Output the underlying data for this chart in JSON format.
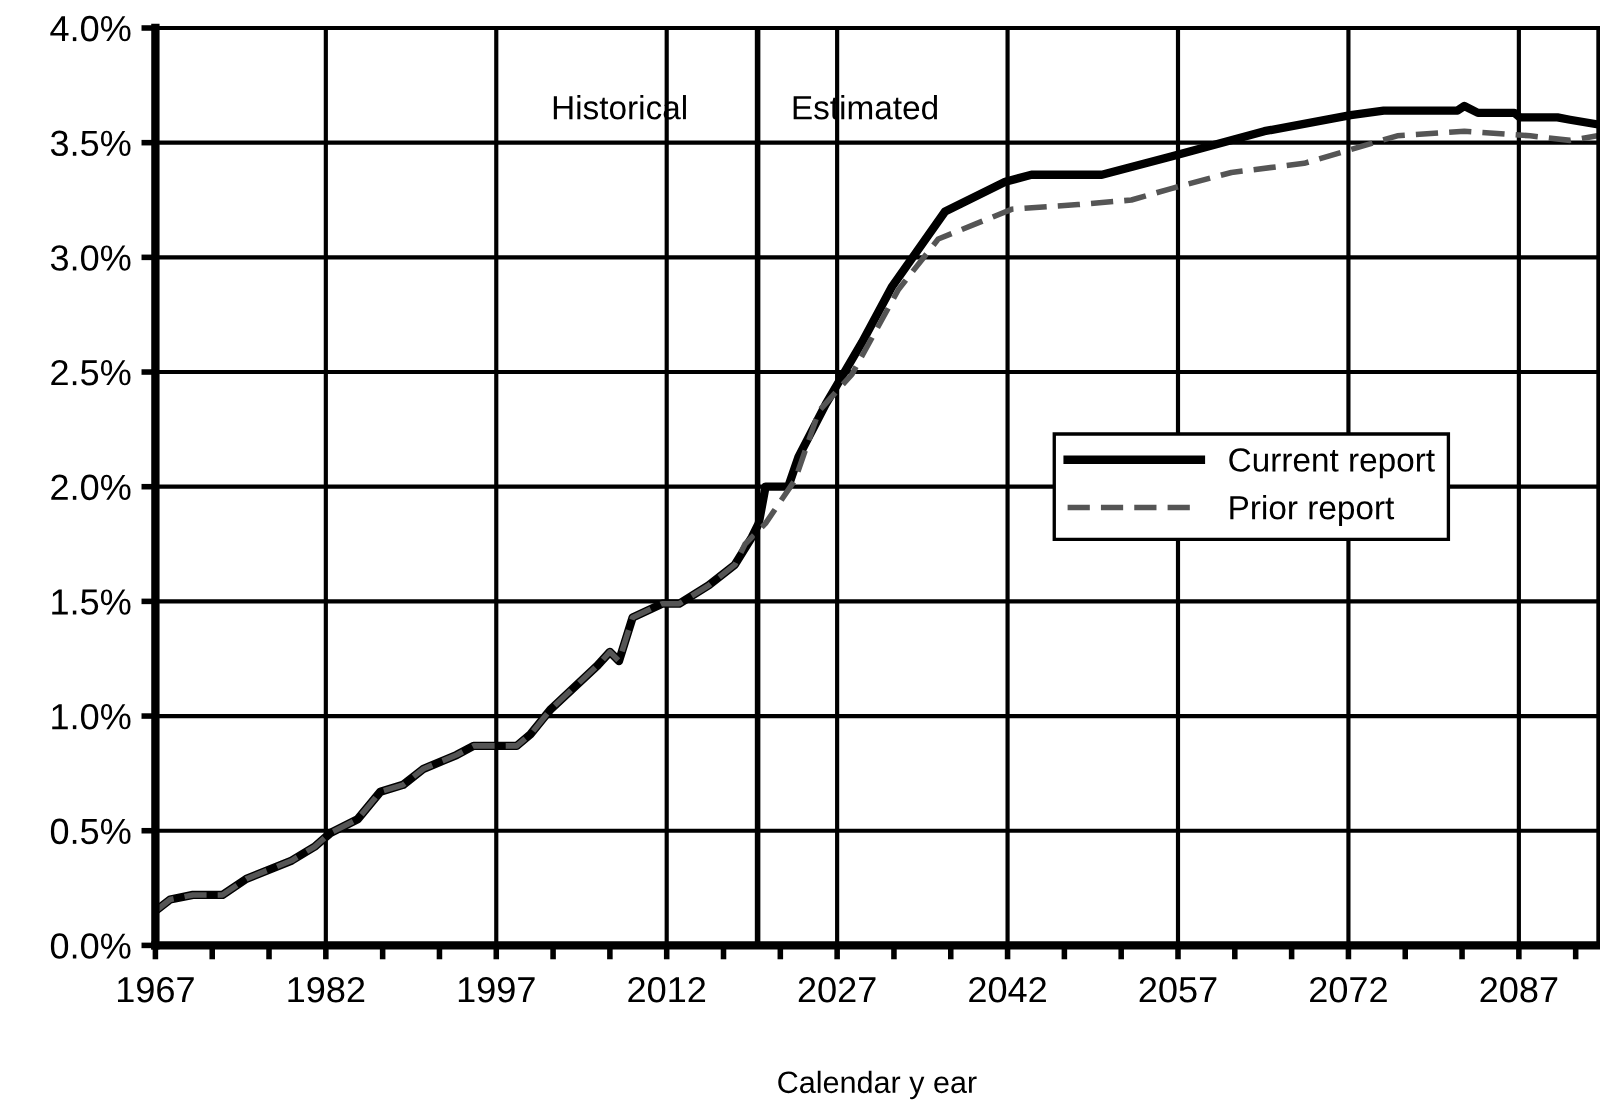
{
  "chart_data": {
    "type": "line",
    "xlabel": "Calendar y ear",
    "xlim": [
      1967,
      2094
    ],
    "xticks": [
      1967,
      {
        "value": 1972,
        "label": null
      },
      {
        "value": 1977,
        "label": null
      },
      1982,
      {
        "value": 1987,
        "label": null
      },
      {
        "value": 1992,
        "label": null
      },
      1997,
      {
        "value": 2002,
        "label": null
      },
      {
        "value": 2007,
        "label": null
      },
      2012,
      {
        "value": 2017,
        "label": null
      },
      {
        "value": 2022,
        "label": null
      },
      2027,
      {
        "value": 2032,
        "label": null
      },
      {
        "value": 2037,
        "label": null
      },
      2042,
      {
        "value": 2047,
        "label": null
      },
      {
        "value": 2052,
        "label": null
      },
      2057,
      {
        "value": 2062,
        "label": null
      },
      {
        "value": 2067,
        "label": null
      },
      2072,
      {
        "value": 2077,
        "label": null
      },
      {
        "value": 2082,
        "label": null
      },
      2087,
      {
        "value": 2092,
        "label": null
      }
    ],
    "ylim": [
      0,
      4
    ],
    "yticks": [
      {
        "value": 0,
        "label": "0.0%"
      },
      {
        "value": 0.5,
        "label": "0.5%"
      },
      {
        "value": 1,
        "label": "1.0%"
      },
      {
        "value": 1.5,
        "label": "1.5%"
      },
      {
        "value": 2,
        "label": "2.0%"
      },
      {
        "value": 2.5,
        "label": "2.5%"
      },
      {
        "value": 3,
        "label": "3.0%"
      },
      {
        "value": 3.5,
        "label": "3.5%"
      },
      {
        "value": 4,
        "label": "4.0%"
      }
    ],
    "grid": true,
    "legend": "center right",
    "ref_lines": [
      {
        "axis": "x",
        "value": 2020,
        "color": "#000000"
      }
    ],
    "annotations": [
      "Historical",
      "Estimated"
    ],
    "series": [
      {
        "name": "Current report",
        "color": "#000000",
        "line_style": "solid",
        "x": [
          1967,
          1968.3,
          1970.3,
          1972.9,
          1975,
          1979,
          1981,
          1982.4,
          1984.8,
          1986.8,
          1988.8,
          1990.6,
          1993.5,
          1995,
          1998.8,
          2000,
          2001.8,
          2005.9,
          2007,
          2007.8,
          2009,
          2011.6,
          2013.1,
          2015.7,
          2018,
          2019.5,
          2020.1,
          2020.7,
          2022.7,
          2023.6,
          2026,
          2029.2,
          2031.8,
          2036.5,
          2041.8,
          2044.1,
          2050.3,
          2056.4,
          2064.6,
          2072.2,
          2075.1,
          2081.6,
          2082.2,
          2083.4,
          2086.6,
          2087.1,
          2090.4,
          2091.5,
          2093.9
        ],
        "values": [
          0.15,
          0.2,
          0.22,
          0.22,
          0.29,
          0.37,
          0.43,
          0.49,
          0.55,
          0.67,
          0.7,
          0.77,
          0.83,
          0.87,
          0.87,
          0.92,
          1.03,
          1.22,
          1.28,
          1.24,
          1.43,
          1.49,
          1.49,
          1.57,
          1.66,
          1.78,
          1.84,
          2.0,
          2.0,
          2.13,
          2.36,
          2.63,
          2.87,
          3.2,
          3.33,
          3.36,
          3.36,
          3.44,
          3.55,
          3.62,
          3.64,
          3.64,
          3.66,
          3.63,
          3.63,
          3.61,
          3.61,
          3.6,
          3.58
        ]
      },
      {
        "name": "Prior report",
        "color": "#555555",
        "line_style": "dashed",
        "x": [
          1967,
          1968.3,
          1970.3,
          1972.9,
          1975,
          1979,
          1981,
          1982.4,
          1984.8,
          1986.8,
          1988.8,
          1990.6,
          1993.5,
          1995,
          1998.8,
          2000,
          2001.8,
          2005.9,
          2007,
          2007.8,
          2009,
          2011.6,
          2013.1,
          2015.7,
          2018,
          2018.9,
          2020.7,
          2023.3,
          2025.4,
          2028.3,
          2032.4,
          2035.9,
          2042.4,
          2048.2,
          2052.9,
          2056.4,
          2061.7,
          2068.1,
          2072.2,
          2076.3,
          2082.2,
          2088,
          2091.5,
          2093.9
        ],
        "values": [
          0.15,
          0.2,
          0.22,
          0.22,
          0.29,
          0.37,
          0.43,
          0.49,
          0.55,
          0.67,
          0.7,
          0.77,
          0.83,
          0.87,
          0.87,
          0.92,
          1.03,
          1.22,
          1.28,
          1.24,
          1.43,
          1.49,
          1.49,
          1.57,
          1.66,
          1.75,
          1.84,
          2.03,
          2.33,
          2.49,
          2.86,
          3.08,
          3.21,
          3.23,
          3.25,
          3.3,
          3.37,
          3.41,
          3.47,
          3.53,
          3.55,
          3.53,
          3.51,
          3.53
        ]
      }
    ]
  }
}
